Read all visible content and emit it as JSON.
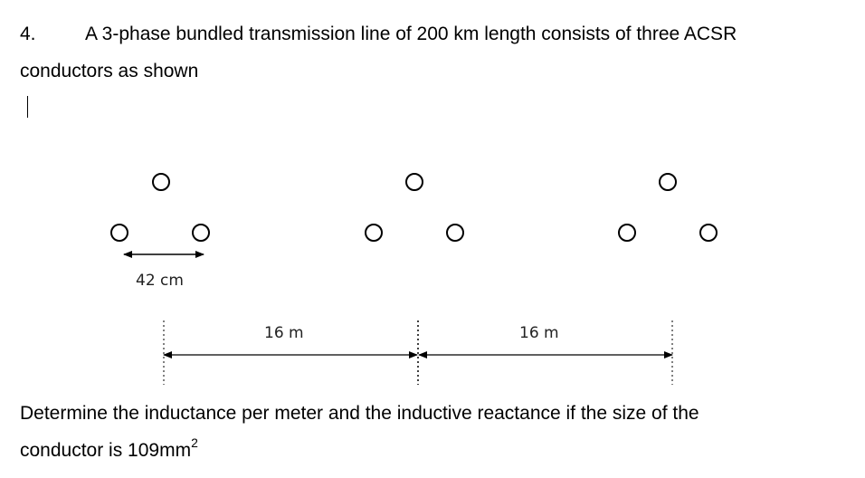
{
  "question": {
    "number": "4.",
    "intro_line1": "A 3-phase bundled transmission line of 200 km length consists of three ACSR",
    "intro_line2": "conductors as shown",
    "ask_line1": "Determine the inductance per meter and the inductive reactance if the size of the",
    "ask_line2_prefix": "conductor is 109mm",
    "ask_line2_superscript": "2"
  },
  "figure": {
    "bundle_spacing_label": "42 cm",
    "phase_spacing_labels": [
      "16 m",
      "16 m"
    ],
    "bundles": [
      {
        "conductors": 3,
        "arrangement": "triangle"
      },
      {
        "conductors": 3,
        "arrangement": "triangle"
      },
      {
        "conductors": 3,
        "arrangement": "triangle"
      }
    ]
  }
}
